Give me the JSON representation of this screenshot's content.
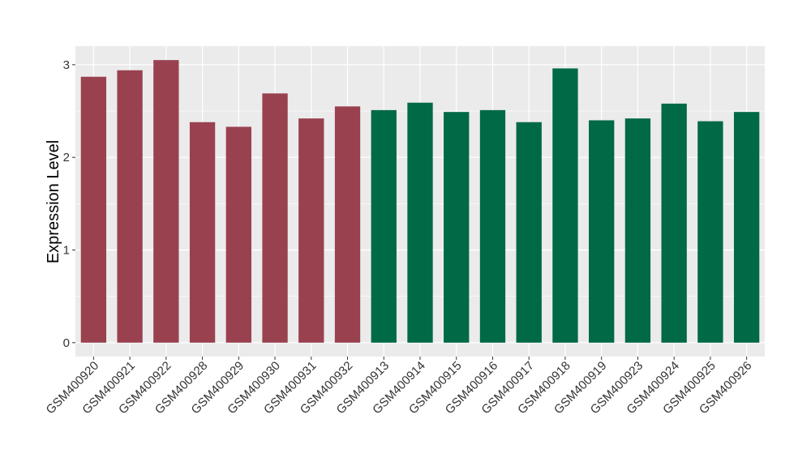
{
  "chart_data": {
    "type": "bar",
    "title": "",
    "xlabel": "",
    "ylabel": "Expression Level",
    "ylim": [
      -0.15,
      3.2
    ],
    "yticks": [
      0,
      1,
      2,
      3
    ],
    "grid": true,
    "categories": [
      "GSM400920",
      "GSM400921",
      "GSM400922",
      "GSM400928",
      "GSM400929",
      "GSM400930",
      "GSM400931",
      "GSM400932",
      "GSM400913",
      "GSM400914",
      "GSM400915",
      "GSM400916",
      "GSM400917",
      "GSM400918",
      "GSM400919",
      "GSM400923",
      "GSM400924",
      "GSM400925",
      "GSM400926"
    ],
    "values": [
      2.87,
      2.94,
      3.05,
      2.38,
      2.33,
      2.69,
      2.42,
      2.55,
      2.51,
      2.59,
      2.49,
      2.51,
      2.38,
      2.96,
      2.4,
      2.42,
      2.58,
      2.39,
      2.49
    ],
    "bar_colors": [
      "#99414F",
      "#99414F",
      "#99414F",
      "#99414F",
      "#99414F",
      "#99414F",
      "#99414F",
      "#99414F",
      "#006946",
      "#006946",
      "#006946",
      "#006946",
      "#006946",
      "#006946",
      "#006946",
      "#006946",
      "#006946",
      "#006946",
      "#006946"
    ],
    "panel_background": "#EBEBEB",
    "gridline_color": "#FFFFFF"
  }
}
